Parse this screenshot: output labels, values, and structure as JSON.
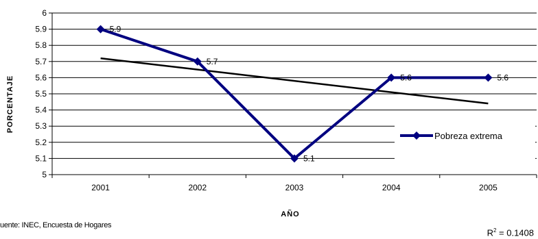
{
  "chart_data": {
    "type": "line",
    "categories": [
      "2001",
      "2002",
      "2003",
      "2004",
      "2005"
    ],
    "series": [
      {
        "name": "Pobreza extrema",
        "values": [
          5.9,
          5.7,
          5.1,
          5.6,
          5.6
        ],
        "color": "#000080",
        "marker": "diamond"
      }
    ],
    "trendline": {
      "type": "linear",
      "start_value": 5.72,
      "end_value": 5.44,
      "color": "#000000"
    },
    "data_labels": [
      "5.9",
      "5.7",
      "5.1",
      "5.6",
      "5.6"
    ],
    "ylim": [
      5,
      6
    ],
    "yticks": [
      "5",
      "5.1",
      "5.2",
      "5.3",
      "5.4",
      "5.5",
      "5.6",
      "5.7",
      "5.8",
      "5.9",
      "6"
    ],
    "ylabel": "PORCENTAJE",
    "xlabel": "AÑO",
    "legend_position": "right",
    "grid": "horizontal"
  },
  "source_text": "uente: INEC, Encuesta de Hogares",
  "r2": {
    "prefix": "R",
    "exp": "2",
    "value": " = 0.1408"
  }
}
